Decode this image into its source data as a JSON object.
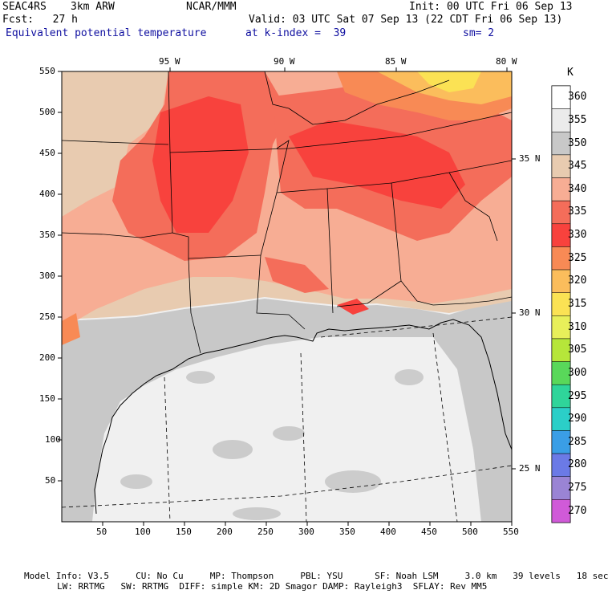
{
  "header": {
    "project": "SEAC4RS",
    "model": "3km ARW",
    "org": "NCAR/MMM",
    "init": "Init: 00 UTC Fri 06 Sep 13",
    "fcst": "Fcst:   27 h",
    "valid": "Valid: 03 UTC Sat 07 Sep 13 (22 CDT Fri 06 Sep 13)",
    "field": "Equivalent potential temperature",
    "level": "at k-index =  39",
    "smooth": "sm= 2"
  },
  "map": {
    "lon_labels": [
      "95 W",
      "90 W",
      "85 W",
      "80 W"
    ],
    "lat_labels": [
      "35 N",
      "30 N",
      "25 N"
    ],
    "x_ticks": [
      "50",
      "100",
      "150",
      "200",
      "250",
      "300",
      "350",
      "400",
      "450",
      "500",
      "550"
    ],
    "y_ticks": [
      "550",
      "500",
      "450",
      "400",
      "350",
      "300",
      "250",
      "200",
      "150",
      "100",
      "50"
    ]
  },
  "colorbar": {
    "unit": "K",
    "levels": [
      "360",
      "355",
      "350",
      "345",
      "340",
      "335",
      "330",
      "325",
      "320",
      "315",
      "310",
      "305",
      "300",
      "295",
      "290",
      "285",
      "280",
      "275",
      "270"
    ],
    "colors": [
      "#ffffff",
      "#ebebeb",
      "#c8c8c8",
      "#e8cbb0",
      "#f7ad94",
      "#f46d5a",
      "#f8423d",
      "#f88a55",
      "#fbbd5c",
      "#fbe254",
      "#e8ef5a",
      "#b6e63a",
      "#59d85a",
      "#2fd59a",
      "#2bcfc8",
      "#3a9ee6",
      "#6b7ae6",
      "#9a84d4",
      "#d05ad8"
    ]
  },
  "footer": {
    "line1": "Model Info: V3.5     CU: No Cu     MP: Thompson     PBL: YSU      SF: Noah LSM     3.0 km   39 levels   18 sec",
    "line2": "LW: RRTMG   SW: RRTMG  DIFF: simple KM: 2D Smagor DAMP: Rayleigh3  SFLAY: Rev MM5"
  }
}
